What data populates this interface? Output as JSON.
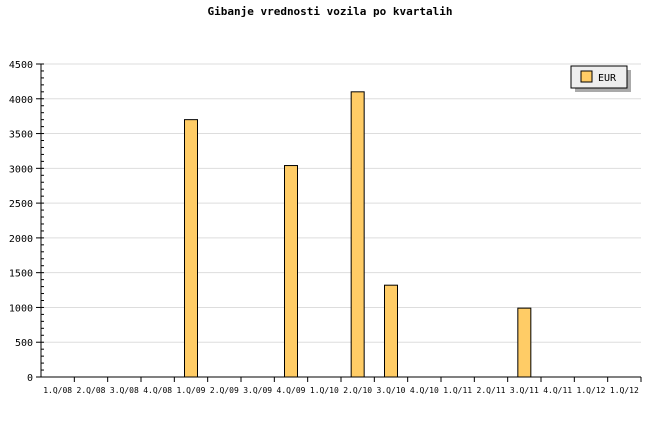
{
  "chart_data": {
    "type": "bar",
    "title": "Gibanje vrednosti vozila po kvartalih",
    "categories": [
      "1.Q/08",
      "2.Q/08",
      "3.Q/08",
      "4.Q/08",
      "1.Q/09",
      "2.Q/09",
      "3.Q/09",
      "4.Q/09",
      "1.Q/10",
      "2.Q/10",
      "3.Q/10",
      "4.Q/10",
      "1.Q/11",
      "2.Q/11",
      "3.Q/11",
      "4.Q/11",
      "1.Q/12",
      "1.Q/12"
    ],
    "series": [
      {
        "name": "EUR",
        "values": [
          0,
          0,
          0,
          0,
          3700,
          0,
          0,
          3040,
          0,
          4100,
          1320,
          0,
          0,
          0,
          990,
          0,
          0,
          0
        ]
      }
    ],
    "ylim": [
      0,
      4500
    ],
    "yticks": [
      0,
      500,
      1000,
      1500,
      2000,
      2500,
      3000,
      3500,
      4000,
      4500
    ],
    "grid": true,
    "legend": "top-right",
    "colors": {
      "bar": "#ffcc66",
      "grid": "#dddddd",
      "legend_bg": "#eeeeee"
    }
  }
}
